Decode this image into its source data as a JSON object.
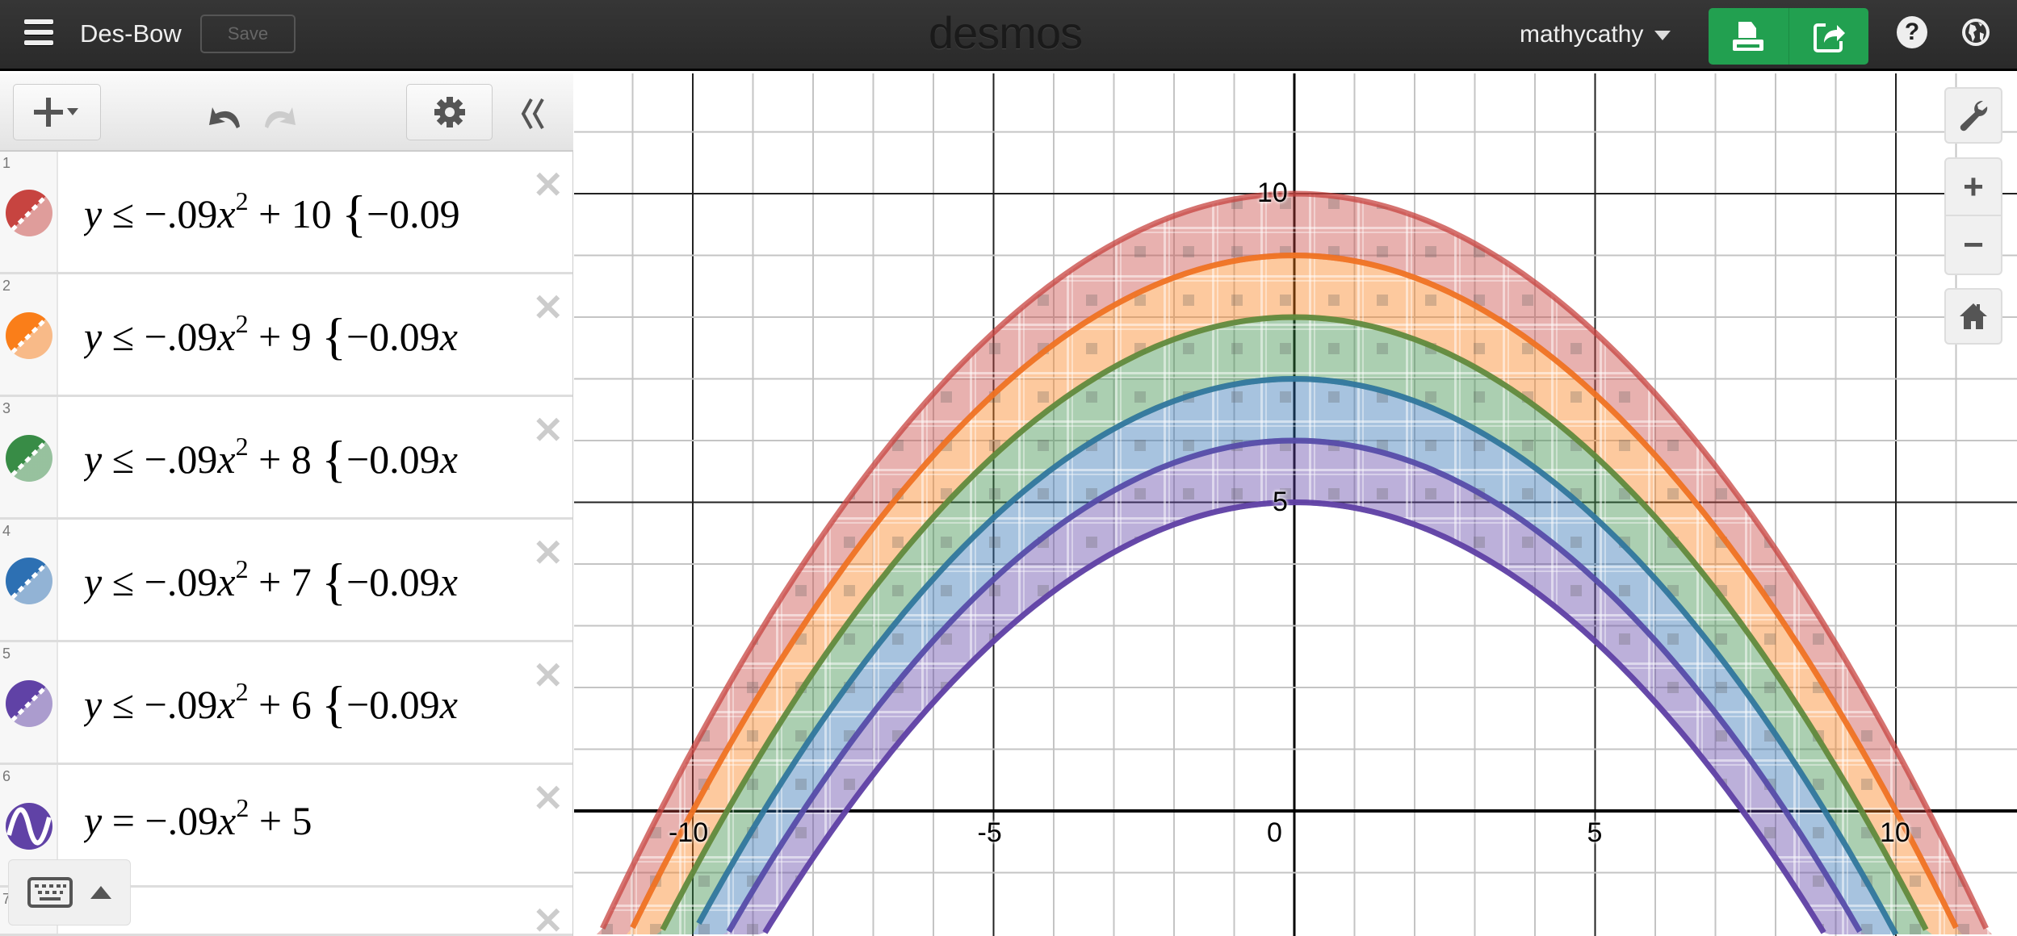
{
  "header": {
    "title": "Des-Bow",
    "save_label": "Save",
    "logo": "desmos",
    "user": "mathycathy",
    "print_icon": "print-icon",
    "share_icon": "share-icon",
    "help_label": "?",
    "globe_icon": "globe-icon"
  },
  "colors": {
    "red": "#c74440",
    "orange": "#fa7e19",
    "green": "#388c46",
    "blue": "#2d70b3",
    "purple": "#6042a6",
    "header": "#2f2f2f",
    "accent_green": "#22a050"
  },
  "expressions": [
    {
      "num": "1",
      "color": "#c74440",
      "y": "y",
      "rel": "≤",
      "coef": "−.09",
      "x": "x",
      "pow": "2",
      "plus": "+",
      "const": "10",
      "restriction": "−0.09",
      "restriction_var": ""
    },
    {
      "num": "2",
      "color": "#fa7e19",
      "y": "y",
      "rel": "≤",
      "coef": "−.09",
      "x": "x",
      "pow": "2",
      "plus": "+",
      "const": "9",
      "restriction": "−0.09",
      "restriction_var": "x"
    },
    {
      "num": "3",
      "color": "#388c46",
      "y": "y",
      "rel": "≤",
      "coef": "−.09",
      "x": "x",
      "pow": "2",
      "plus": "+",
      "const": "8",
      "restriction": "−0.09",
      "restriction_var": "x"
    },
    {
      "num": "4",
      "color": "#2d70b3",
      "y": "y",
      "rel": "≤",
      "coef": "−.09",
      "x": "x",
      "pow": "2",
      "plus": "+",
      "const": "7",
      "restriction": "−0.09",
      "restriction_var": "x"
    },
    {
      "num": "5",
      "color": "#6042a6",
      "y": "y",
      "rel": "≤",
      "coef": "−.09",
      "x": "x",
      "pow": "2",
      "plus": "+",
      "const": "6",
      "restriction": "−0.09",
      "restriction_var": "x"
    },
    {
      "num": "6",
      "color": "#6042a6",
      "y": "y",
      "rel": "=",
      "coef": "−.09",
      "x": "x",
      "pow": "2",
      "plus": "+",
      "const": "5",
      "restriction": "",
      "restriction_var": ""
    },
    {
      "num": "7"
    }
  ],
  "chart_data": {
    "type": "area",
    "xlim": [
      -12,
      12
    ],
    "ylim": [
      -2,
      12
    ],
    "grid": true,
    "x_ticks": [
      "-10",
      "-5",
      "0",
      "5",
      "10"
    ],
    "y_ticks": [
      "5",
      "10"
    ],
    "regions": [
      {
        "upper": "-0.09x^2+10",
        "lower": "-0.09x^2+9",
        "color": "#c74440"
      },
      {
        "upper": "-0.09x^2+9",
        "lower": "-0.09x^2+8",
        "color": "#fa7e19"
      },
      {
        "upper": "-0.09x^2+8",
        "lower": "-0.09x^2+7",
        "color": "#388c46"
      },
      {
        "upper": "-0.09x^2+7",
        "lower": "-0.09x^2+6",
        "color": "#2d70b3"
      },
      {
        "upper": "-0.09x^2+6",
        "lower": "-0.09x^2+5",
        "color": "#6042a6"
      }
    ],
    "curves": [
      {
        "a": -0.09,
        "c": 5,
        "color": "#6042a6"
      }
    ]
  }
}
